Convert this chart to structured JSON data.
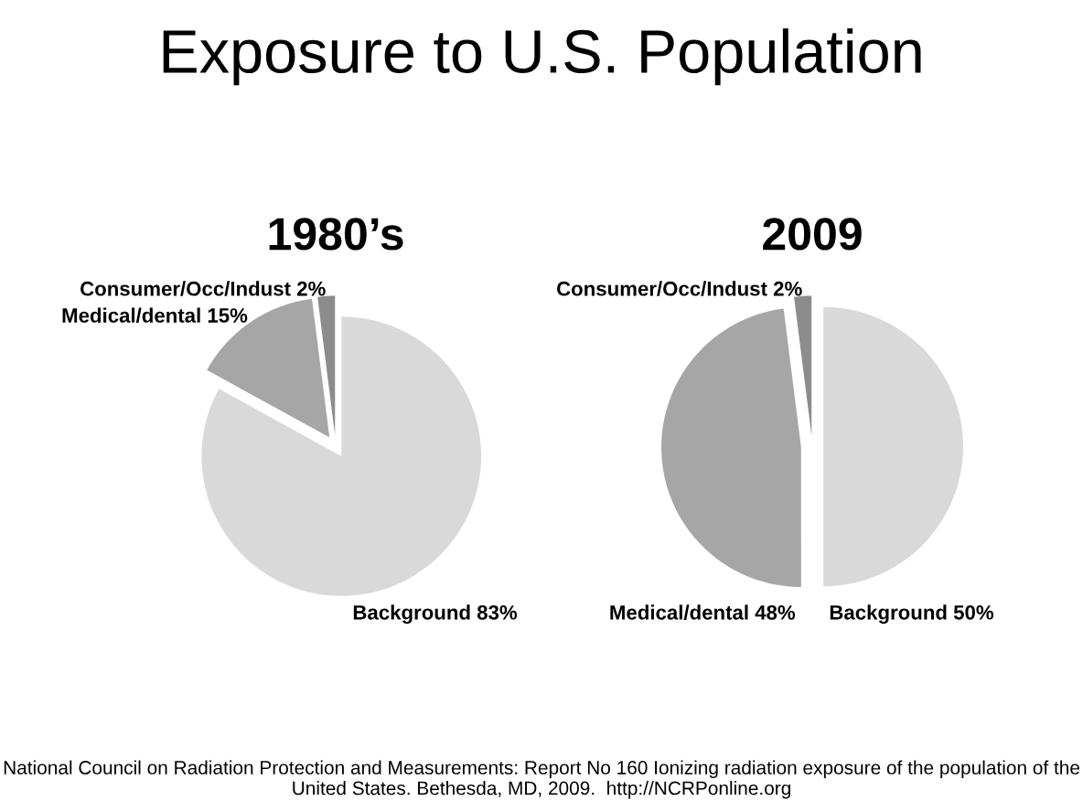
{
  "chart_data": [
    {
      "type": "pie",
      "title": "1980’s",
      "categories": [
        "Background",
        "Medical/dental",
        "Consumer/Occ/Indust"
      ],
      "values": [
        83,
        15,
        2
      ],
      "value_labels": [
        "83%",
        "15%",
        "2%"
      ],
      "colors": [
        "#d9d9d9",
        "#a6a6a6",
        "#8c8c8c"
      ],
      "annotations": [
        "Exposure to U.S. Population",
        "National Council on Radiation Protection and Measurements: Report No 160 Ionizing radiation exposure of the population of the United States. Bethesda, MD, 2009.  http://NCRPonline.org"
      ]
    },
    {
      "type": "pie",
      "title": "2009",
      "categories": [
        "Background",
        "Medical/dental",
        "Consumer/Occ/Indust"
      ],
      "values": [
        50,
        48,
        2
      ],
      "value_labels": [
        "50%",
        "48%",
        "2%"
      ],
      "colors": [
        "#d9d9d9",
        "#a6a6a6",
        "#8c8c8c"
      ]
    }
  ]
}
